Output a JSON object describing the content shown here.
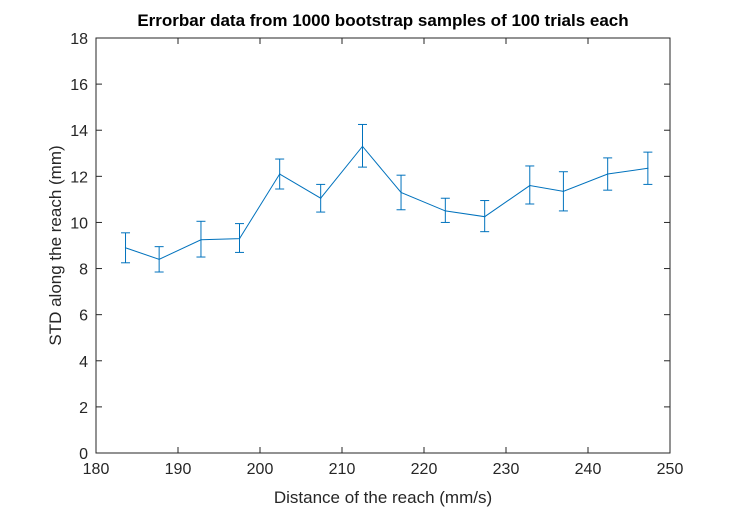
{
  "chart_data": {
    "type": "line",
    "title": "Errorbar data from 1000 bootstrap samples of 100 trials each",
    "xlabel": "Distance of the reach (mm/s)",
    "ylabel": "STD along the reach (mm)",
    "xlim": [
      180,
      250
    ],
    "ylim": [
      0,
      18
    ],
    "xticks": [
      180,
      190,
      200,
      210,
      220,
      230,
      240,
      250
    ],
    "yticks": [
      0,
      2,
      4,
      6,
      8,
      10,
      12,
      14,
      16,
      18
    ],
    "grid": false,
    "line_color": "#0072BD",
    "series": [
      {
        "x": [
          183.6,
          187.7,
          192.8,
          197.5,
          202.4,
          207.4,
          212.5,
          217.2,
          222.6,
          227.4,
          232.9,
          237.0,
          242.4,
          247.3
        ],
        "y": [
          8.9,
          8.4,
          9.25,
          9.3,
          12.1,
          11.05,
          13.3,
          11.3,
          10.5,
          10.25,
          11.6,
          11.35,
          12.1,
          12.35
        ],
        "err_low": [
          8.25,
          7.85,
          8.5,
          8.7,
          11.45,
          10.45,
          12.4,
          10.55,
          10.0,
          9.6,
          10.8,
          10.5,
          11.4,
          11.65
        ],
        "err_high": [
          9.55,
          8.95,
          10.05,
          9.95,
          12.75,
          11.65,
          14.25,
          12.05,
          11.05,
          10.95,
          12.45,
          12.2,
          12.8,
          13.05
        ]
      }
    ]
  }
}
